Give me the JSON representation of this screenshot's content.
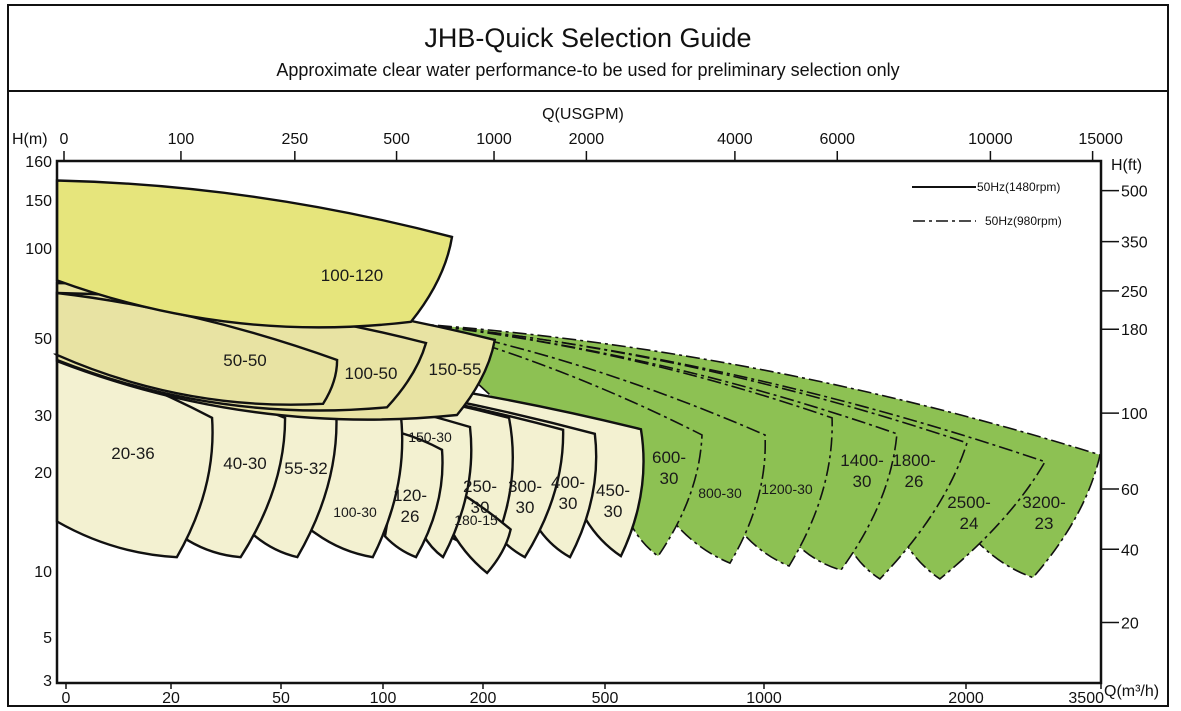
{
  "chart_data": {
    "type": "area",
    "title": "JHB-Quick Selection Guide",
    "subtitle": "Approximate clear water performance-to be used for preliminary selection only",
    "x_bottom": {
      "label": "Q(m³/h)",
      "ticks": [
        0,
        20,
        50,
        100,
        200,
        500,
        1000,
        2000,
        3500
      ],
      "range": [
        0,
        3500
      ],
      "scale": "nonlinear"
    },
    "x_top": {
      "label": "Q(USGPM)",
      "ticks": [
        0,
        100,
        250,
        500,
        1000,
        2000,
        4000,
        6000,
        10000,
        15000
      ]
    },
    "y_left": {
      "label": "H(m)",
      "ticks": [
        160,
        150,
        100,
        50,
        30,
        20,
        10,
        5,
        3
      ],
      "range": [
        3,
        160
      ],
      "scale": "nonlinear"
    },
    "y_right": {
      "label": "H(ft)",
      "ticks": [
        500,
        350,
        250,
        180,
        100,
        60,
        40,
        20
      ]
    },
    "legend": {
      "placement": "top-right",
      "items": [
        {
          "label": "50Hz(1480rpm)",
          "style": "solid"
        },
        {
          "label": "50Hz(980rpm)",
          "style": "dashed"
        }
      ]
    },
    "colors": {
      "high": "#e6e57c",
      "mid": "#e8e3a3",
      "low": "#f3f1d1",
      "large": "#8dc153",
      "line": "#111111"
    },
    "zones": [
      {
        "model": [
          "3200-",
          "23"
        ],
        "group": "large",
        "style": "dashed",
        "points": [
          [
            130,
            58
          ],
          [
            3489,
            23
          ],
          [
            2744,
            9.5
          ],
          [
            2133,
            12.9
          ]
        ]
      },
      {
        "model": [
          "2500-",
          "24"
        ],
        "group": "large",
        "style": "dashed",
        "points": [
          [
            130,
            58
          ],
          [
            2878,
            21.8
          ],
          [
            1871,
            9.4
          ],
          [
            1698,
            12.9
          ]
        ]
      },
      {
        "model": [
          "1800-",
          "26"
        ],
        "group": "large",
        "style": "dashed",
        "points": [
          [
            130,
            58
          ],
          [
            2011,
            25.1
          ],
          [
            1574,
            9.4
          ],
          [
            1436,
            12
          ]
        ]
      },
      {
        "model": [
          "1400-",
          "30"
        ],
        "group": "large",
        "style": "dashed",
        "points": [
          [
            130,
            58
          ],
          [
            1658,
            26.7
          ],
          [
            1381,
            10.1
          ],
          [
            1178,
            12.4
          ]
        ]
      },
      {
        "model": [
          "1200-30"
        ],
        "group": "large",
        "style": "dashed",
        "points": [
          [
            130,
            58
          ],
          [
            1337,
            29.5
          ],
          [
            1124,
            10.5
          ],
          [
            934,
            13.8
          ]
        ]
      },
      {
        "model": [
          "800-30"
        ],
        "group": "large",
        "style": "dashed",
        "points": [
          [
            130,
            58
          ],
          [
            1005,
            26.5
          ],
          [
            893,
            10.8
          ],
          [
            723,
            14.7
          ]
        ]
      },
      {
        "model": [
          "600-",
          "30"
        ],
        "group": "large",
        "style": "dashed",
        "points": [
          [
            130,
            58
          ],
          [
            805,
            26.5
          ],
          [
            667,
            11.5
          ],
          [
            585,
            14.5
          ]
        ]
      },
      {
        "model": [
          "450-",
          "30"
        ],
        "group": "low",
        "style": "solid",
        "points": [
          [
            0,
            45.6
          ],
          [
            613,
            27.5
          ],
          [
            550,
            11.5
          ],
          [
            453,
            15.2
          ]
        ]
      },
      {
        "model": [
          "400-",
          "30"
        ],
        "group": "low",
        "style": "solid",
        "points": [
          [
            0,
            45.6
          ],
          [
            475,
            26.7
          ],
          [
            414,
            11.4
          ],
          [
            340,
            14.1
          ]
        ]
      },
      {
        "model": [
          "300-",
          "30"
        ],
        "group": "low",
        "style": "solid",
        "points": [
          [
            0,
            45.6
          ],
          [
            397,
            27.4
          ],
          [
            303,
            11.4
          ],
          [
            227,
            14.1
          ]
        ]
      },
      {
        "model": [
          "250-",
          "30"
        ],
        "group": "low",
        "style": "solid",
        "points": [
          [
            0,
            45.6
          ],
          [
            264,
            29.5
          ],
          [
            222,
            12.1
          ],
          [
            165,
            13.6
          ]
        ]
      },
      {
        "model": [
          "180-15"
        ],
        "group": "low",
        "style": "solid",
        "points": [
          [
            174,
            18.1
          ],
          [
            268,
            14.2
          ],
          [
            210,
            9.85
          ],
          [
            165,
            14.7
          ]
        ]
      },
      {
        "model": [
          "150-30"
        ],
        "group": "low",
        "style": "solid",
        "points": [
          [
            0,
            45.6
          ],
          [
            187,
            27.9
          ],
          [
            160,
            11.4
          ],
          [
            140,
            13.7
          ]
        ]
      },
      {
        "model": [
          "120-",
          "26"
        ],
        "group": "low",
        "style": "solid",
        "points": [
          [
            119,
            26.8
          ],
          [
            159,
            23.9
          ],
          [
            133,
            11.4
          ],
          [
            102,
            13.5
          ]
        ]
      },
      {
        "model": [
          "100-30"
        ],
        "group": "low",
        "style": "solid",
        "points": [
          [
            0,
            45.6
          ],
          [
            117,
            31.8
          ],
          [
            95,
            11.4
          ],
          [
            67,
            13.8
          ]
        ]
      },
      {
        "model": [
          "55-32"
        ],
        "group": "low",
        "style": "solid",
        "points": [
          [
            0,
            45.6
          ],
          [
            77,
            31.8
          ],
          [
            58,
            11.4
          ],
          [
            43,
            13.5
          ]
        ]
      },
      {
        "model": [
          "40-30"
        ],
        "group": "low",
        "style": "solid",
        "points": [
          [
            0,
            45.6
          ],
          [
            52,
            29.5
          ],
          [
            39,
            11.4
          ],
          [
            24.6,
            13.1
          ]
        ]
      },
      {
        "model": [
          "20-36"
        ],
        "group": "low",
        "style": "solid",
        "points": [
          [
            0,
            45.6
          ],
          [
            31.2,
            29.5
          ],
          [
            21.6,
            11.4
          ],
          [
            0,
            15
          ]
        ]
      },
      {
        "model": [
          "150-55"
        ],
        "group": "mid",
        "style": "solid",
        "points": [
          [
            0,
            80.5
          ],
          [
            229,
            49.5
          ],
          [
            174,
            30
          ],
          [
            0,
            44
          ]
        ]
      },
      {
        "model": [
          "100-50"
        ],
        "group": "mid",
        "style": "solid",
        "points": [
          [
            0,
            75
          ],
          [
            143,
            48.7
          ],
          [
            104,
            32
          ],
          [
            0,
            44.3
          ]
        ]
      },
      {
        "model": [
          "50-50"
        ],
        "group": "mid",
        "style": "solid",
        "points": [
          [
            0,
            75
          ],
          [
            77.5,
            44.3
          ],
          [
            70.6,
            32.9
          ],
          [
            0,
            45.6
          ]
        ]
      },
      {
        "model": [
          "100-120"
        ],
        "group": "high",
        "style": "solid",
        "points": [
          [
            0,
            155
          ],
          [
            169,
            111.5
          ],
          [
            128,
            59
          ],
          [
            0,
            82
          ]
        ]
      }
    ]
  }
}
